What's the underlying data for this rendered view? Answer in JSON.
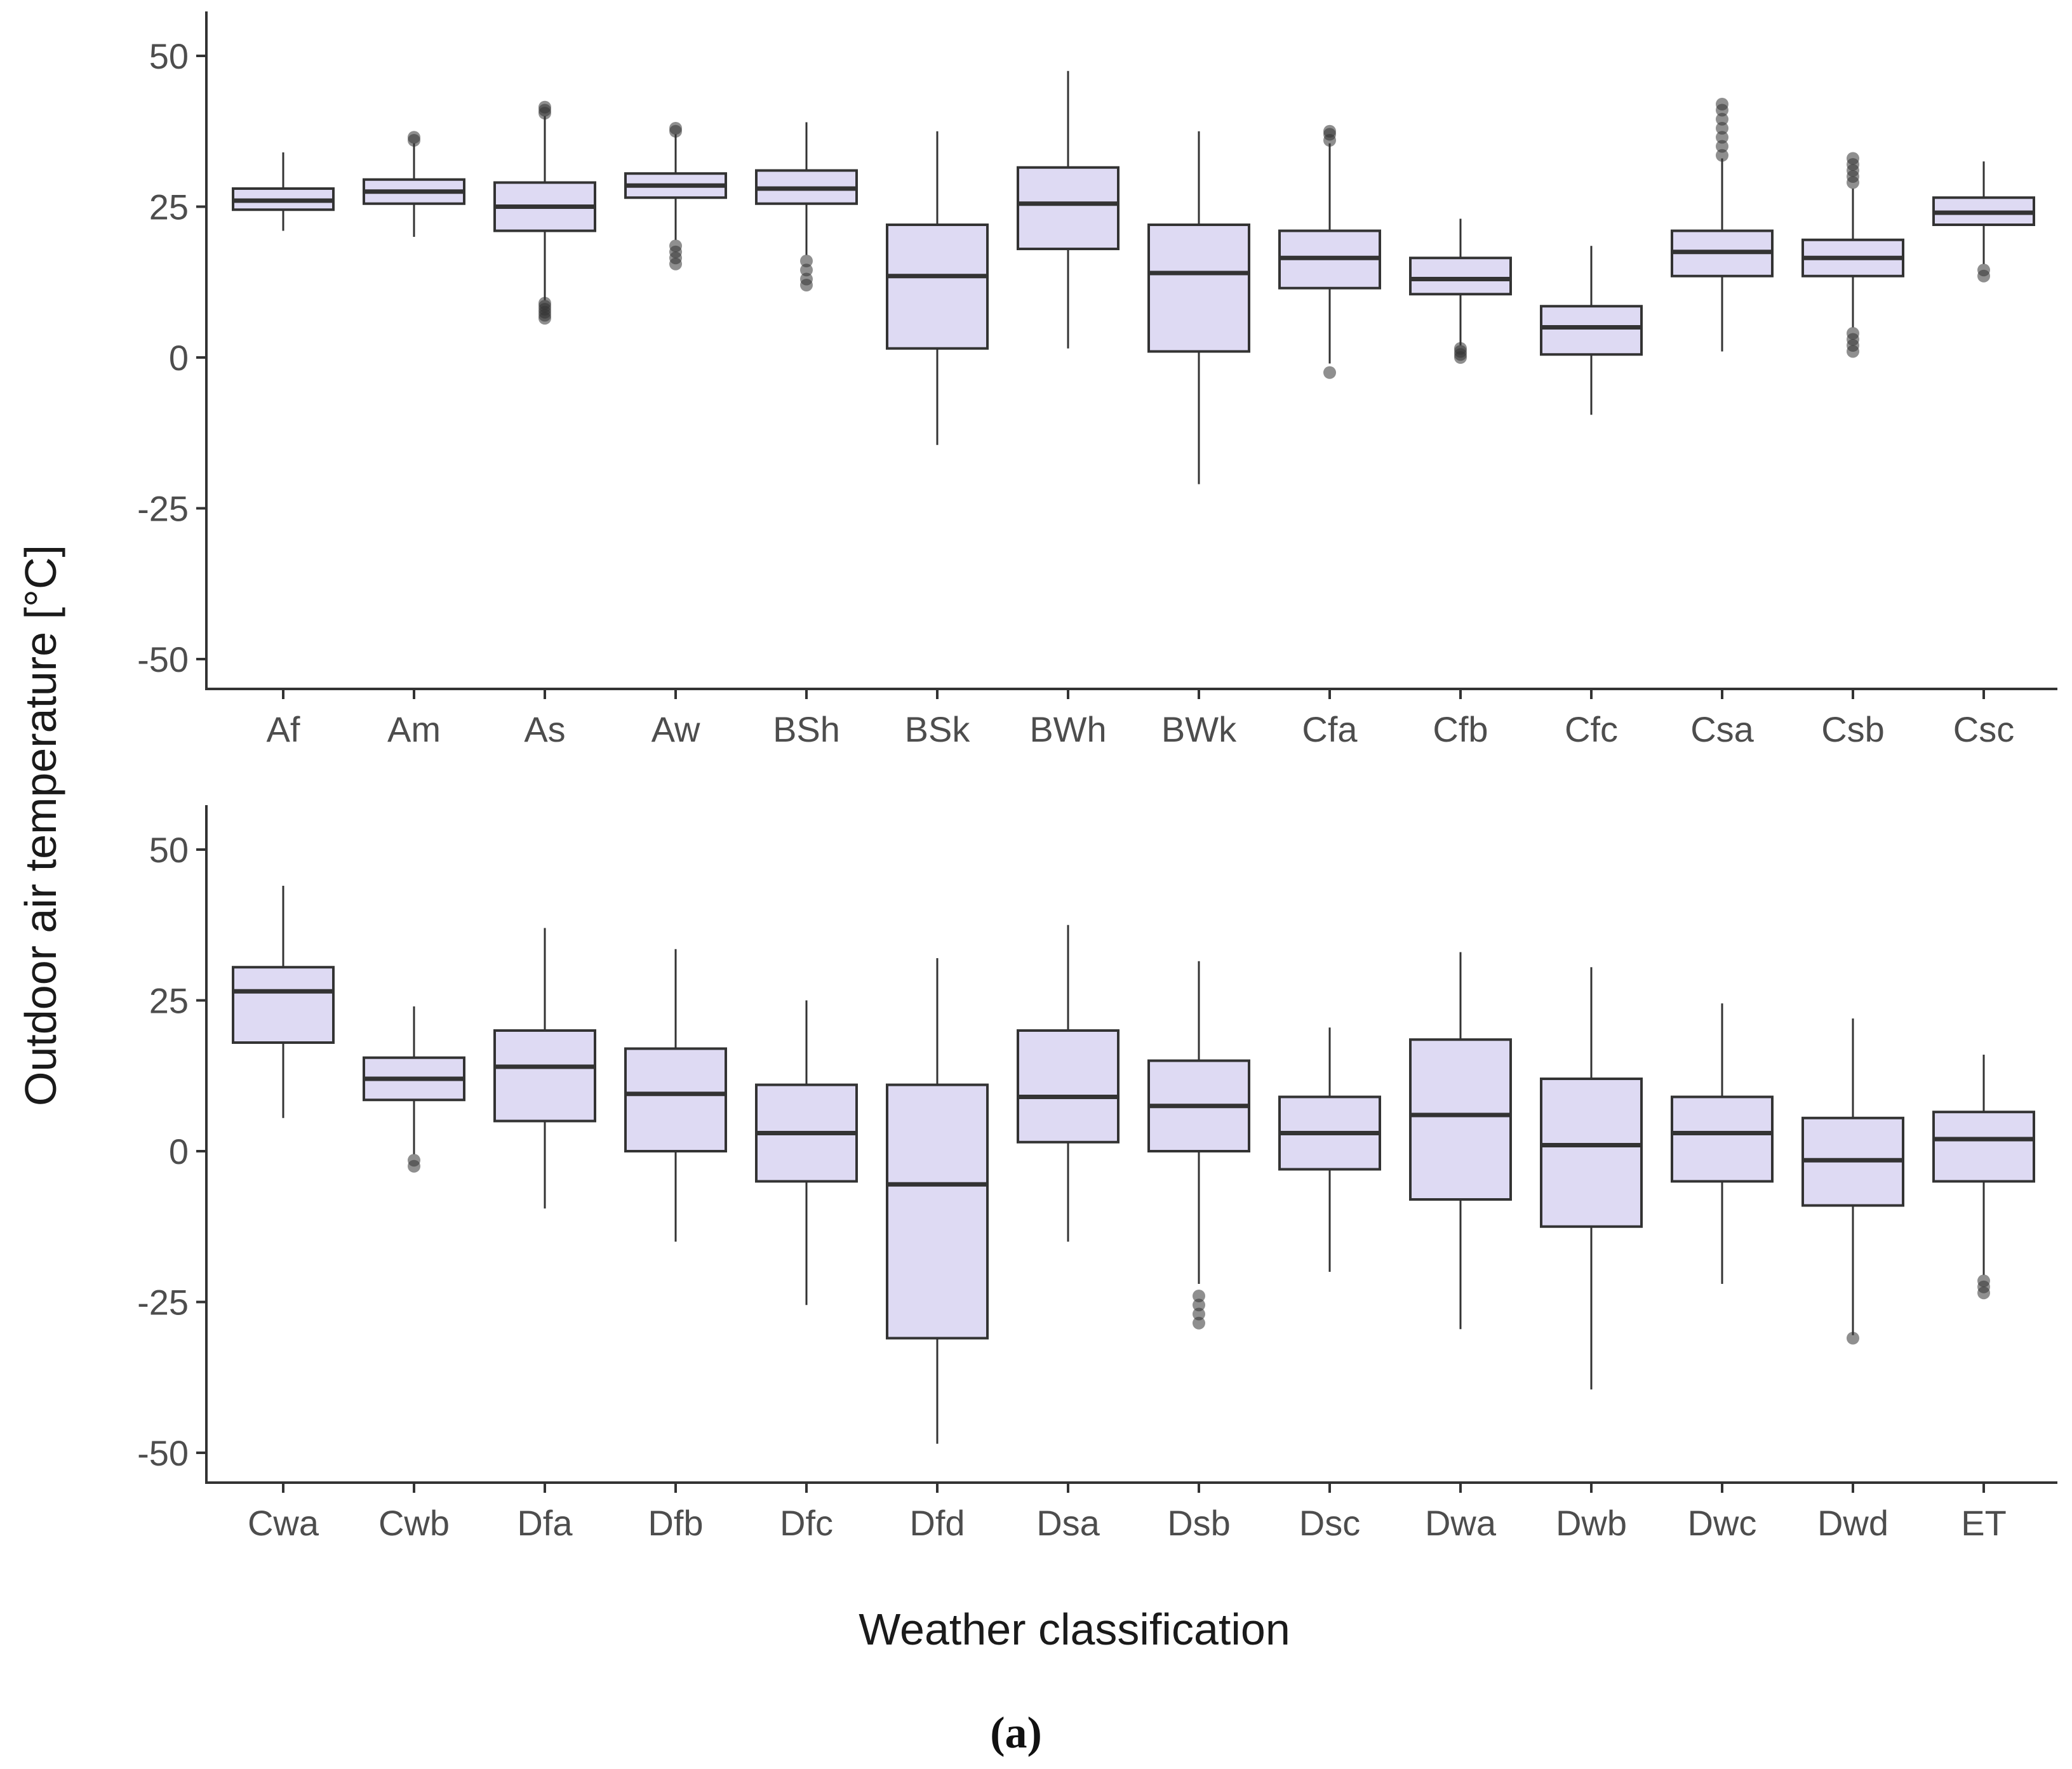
{
  "chart_data": {
    "type": "boxplot",
    "ylabel": "Outdoor air temperature [°C]",
    "xlabel": "Weather classification",
    "caption": "(a)",
    "ylim": [
      -55,
      55
    ],
    "yticks": [
      50,
      25,
      0,
      -25,
      -50
    ],
    "ytick_labels": [
      "50",
      "25",
      "0",
      "-25",
      "-50"
    ],
    "colors": {
      "box_fill": "#dedaf3",
      "box_stroke": "#333333",
      "outlier": "#333333"
    },
    "panels": [
      {
        "categories": [
          "Af",
          "Am",
          "As",
          "Aw",
          "BSh",
          "BSk",
          "BWh",
          "BWk",
          "Cfa",
          "Cfb",
          "Cfc",
          "Csa",
          "Csb",
          "Csc"
        ],
        "boxes": [
          {
            "lo": 21,
            "q1": 24.5,
            "med": 26,
            "q3": 28,
            "hi": 34,
            "outliers": []
          },
          {
            "lo": 20,
            "q1": 25.5,
            "med": 27.5,
            "q3": 29.5,
            "hi": 35.5,
            "outliers": [
              36,
              36.5
            ]
          },
          {
            "lo": 9.5,
            "q1": 21,
            "med": 25,
            "q3": 29,
            "hi": 40,
            "outliers": [
              6.5,
              7,
              7.5,
              8,
              8.5,
              9,
              40.5,
              41,
              41.5
            ]
          },
          {
            "lo": 19.5,
            "q1": 26.5,
            "med": 28.5,
            "q3": 30.5,
            "hi": 37,
            "outliers": [
              15.5,
              16.5,
              17.5,
              18.5,
              37.5,
              38
            ]
          },
          {
            "lo": 17,
            "q1": 25.5,
            "med": 28,
            "q3": 31,
            "hi": 39,
            "outliers": [
              12,
              13,
              14.5,
              16
            ]
          },
          {
            "lo": -14.5,
            "q1": 1.5,
            "med": 13.5,
            "q3": 22,
            "hi": 37.5,
            "outliers": []
          },
          {
            "lo": 1.5,
            "q1": 18,
            "med": 25.5,
            "q3": 31.5,
            "hi": 47.5,
            "outliers": []
          },
          {
            "lo": -21,
            "q1": 1,
            "med": 14,
            "q3": 22,
            "hi": 37.5,
            "outliers": []
          },
          {
            "lo": -1,
            "q1": 11.5,
            "med": 16.5,
            "q3": 21,
            "hi": 35.5,
            "outliers": [
              -2.5,
              36,
              37,
              37.5
            ]
          },
          {
            "lo": 2,
            "q1": 10.5,
            "med": 13,
            "q3": 16.5,
            "hi": 23,
            "outliers": [
              0,
              0.5,
              1,
              1.5
            ]
          },
          {
            "lo": -9.5,
            "q1": 0.5,
            "med": 5,
            "q3": 8.5,
            "hi": 18.5,
            "outliers": []
          },
          {
            "lo": 1,
            "q1": 13.5,
            "med": 17.5,
            "q3": 21,
            "hi": 33,
            "outliers": [
              33.5,
              35,
              36.5,
              38,
              39.5,
              41,
              42
            ]
          },
          {
            "lo": 5,
            "q1": 13.5,
            "med": 16.5,
            "q3": 19.5,
            "hi": 28,
            "outliers": [
              1,
              2,
              3,
              4,
              29,
              30,
              31,
              32,
              33
            ]
          },
          {
            "lo": 15.5,
            "q1": 22,
            "med": 24,
            "q3": 26.5,
            "hi": 32.5,
            "outliers": [
              13.5,
              14.5
            ]
          }
        ]
      },
      {
        "categories": [
          "Cwa",
          "Cwb",
          "Dfa",
          "Dfb",
          "Dfc",
          "Dfd",
          "Dsa",
          "Dsb",
          "Dsc",
          "Dwa",
          "Dwb",
          "Dwc",
          "Dwd",
          "ET"
        ],
        "boxes": [
          {
            "lo": 5.5,
            "q1": 18,
            "med": 26.5,
            "q3": 30.5,
            "hi": 44,
            "outliers": []
          },
          {
            "lo": -0.5,
            "q1": 8.5,
            "med": 12,
            "q3": 15.5,
            "hi": 24,
            "outliers": [
              -2.5,
              -1.5
            ]
          },
          {
            "lo": -9.5,
            "q1": 5,
            "med": 14,
            "q3": 20,
            "hi": 37,
            "outliers": []
          },
          {
            "lo": -15,
            "q1": 0,
            "med": 9.5,
            "q3": 17,
            "hi": 33.5,
            "outliers": []
          },
          {
            "lo": -25.5,
            "q1": -5,
            "med": 3,
            "q3": 11,
            "hi": 25,
            "outliers": []
          },
          {
            "lo": -48.5,
            "q1": -31,
            "med": -5.5,
            "q3": 11,
            "hi": 32,
            "outliers": []
          },
          {
            "lo": -15,
            "q1": 1.5,
            "med": 9,
            "q3": 20,
            "hi": 37.5,
            "outliers": []
          },
          {
            "lo": -22,
            "q1": 0,
            "med": 7.5,
            "q3": 15,
            "hi": 31.5,
            "outliers": [
              -24,
              -25.5,
              -27,
              -28.5
            ]
          },
          {
            "lo": -20,
            "q1": -3,
            "med": 3,
            "q3": 9,
            "hi": 20.5,
            "outliers": []
          },
          {
            "lo": -29.5,
            "q1": -8,
            "med": 6,
            "q3": 18.5,
            "hi": 33,
            "outliers": []
          },
          {
            "lo": -39.5,
            "q1": -12.5,
            "med": 1,
            "q3": 12,
            "hi": 30.5,
            "outliers": []
          },
          {
            "lo": -22,
            "q1": -5,
            "med": 3,
            "q3": 9,
            "hi": 24.5,
            "outliers": []
          },
          {
            "lo": -30.5,
            "q1": -9,
            "med": -1.5,
            "q3": 5.5,
            "hi": 22,
            "outliers": [
              -31
            ]
          },
          {
            "lo": -20.5,
            "q1": -5,
            "med": 2,
            "q3": 6.5,
            "hi": 16,
            "outliers": [
              -21.5,
              -22.5,
              -23.5
            ]
          }
        ]
      }
    ]
  }
}
